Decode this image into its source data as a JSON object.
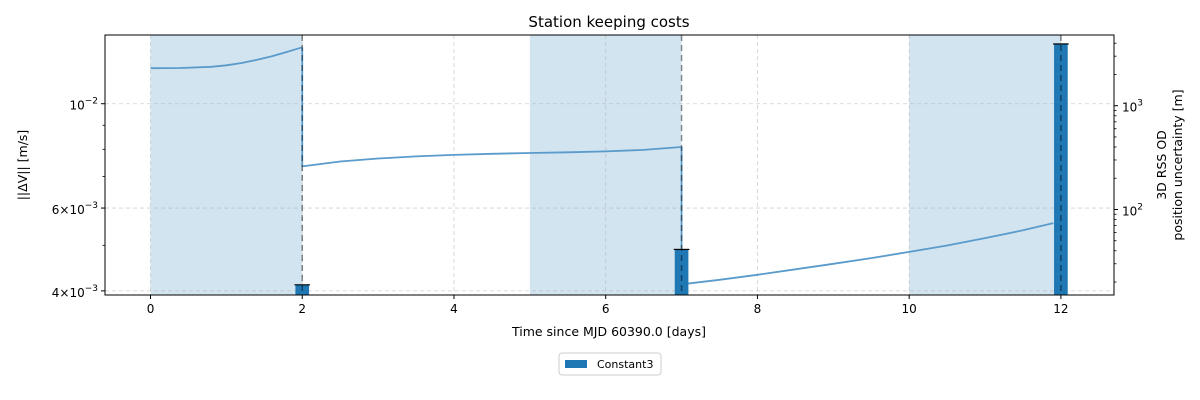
{
  "chart_data": {
    "type": "bar",
    "title": "Station keeping costs",
    "xlabel": "Time since MJD 60390.0 [days]",
    "ylabel": "||ΔV|| [m/s]",
    "y2label_line1": "3D RSS OD",
    "y2label_line2": "position uncertainty [m]",
    "xlim": [
      -0.6,
      12.7
    ],
    "ylim": [
      0.00392,
      0.014
    ],
    "y_scale": "log",
    "y2lim": [
      15,
      4800
    ],
    "y2_scale": "log",
    "grid": true,
    "legend_position": "bottom-center",
    "x_ticks": [
      0,
      2,
      4,
      6,
      8,
      10,
      12
    ],
    "x_tick_labels": [
      "0",
      "2",
      "4",
      "6",
      "8",
      "10",
      "12"
    ],
    "y_ticks": [
      {
        "value": 0.004,
        "mantissa": "4",
        "exponent": "−3"
      },
      {
        "value": 0.006,
        "mantissa": "6",
        "exponent": "−3"
      },
      {
        "value": 0.01,
        "mantissa": "10",
        "exponent": "−2"
      }
    ],
    "y2_ticks": [
      {
        "value": 100,
        "mantissa": "10",
        "exponent": "2"
      },
      {
        "value": 1000,
        "mantissa": "10",
        "exponent": "3"
      }
    ],
    "shaded_regions": [
      [
        0,
        2
      ],
      [
        5,
        7
      ],
      [
        10,
        12
      ]
    ],
    "maneuver_lines": [
      2,
      7,
      12
    ],
    "bars": {
      "name": "Constant3",
      "x": [
        2,
        7,
        12
      ],
      "values": [
        0.00412,
        0.0049,
        0.0134
      ],
      "width": 0.18,
      "color": "#1f77b4"
    },
    "uncertainty_series": {
      "axis": "right",
      "color": "#5a9bcb",
      "segments": [
        {
          "x": [
            0,
            0.4,
            0.8,
            1.0,
            1.2,
            1.4,
            1.6,
            1.8,
            2.0
          ],
          "y": [
            2300,
            2310,
            2370,
            2450,
            2580,
            2760,
            3000,
            3300,
            3650
          ]
        },
        {
          "x": [
            2.0,
            2.5,
            3.0,
            3.5,
            4.0,
            4.5,
            5.0,
            5.5,
            6.0,
            6.5,
            7.0
          ],
          "y": [
            260,
            290,
            310,
            325,
            336,
            344,
            350,
            356,
            363,
            375,
            400
          ]
        },
        {
          "x": [
            7.0,
            7.5,
            8.0,
            8.5,
            9.0,
            9.5,
            10.0,
            10.5,
            11.0,
            11.5,
            11.9
          ],
          "y": [
            19,
            21,
            23.5,
            26.5,
            30,
            34,
            39,
            45,
            53,
            63,
            74
          ]
        }
      ]
    }
  }
}
